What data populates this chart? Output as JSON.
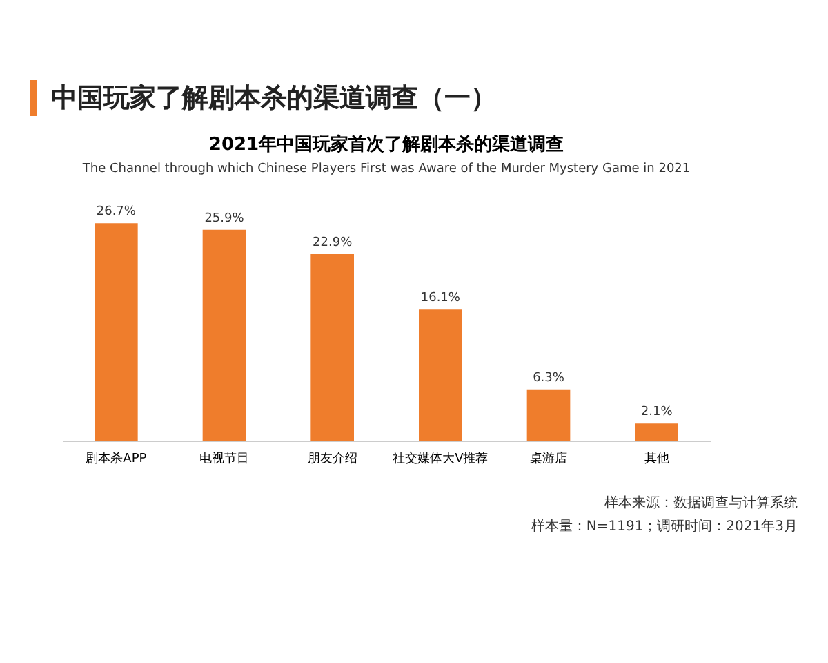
{
  "chart_data": {
    "type": "bar",
    "title": "中国玩家了解剧本杀的渠道调查（一）",
    "subtitle": "2021年中国玩家首次了解剧本杀的渠道调查",
    "annotations": [
      "The Channel through which Chinese Players First was Aware of the Murder Mystery Game in 2021",
      "样本来源：数据调查与计算系统",
      "样本量：N=1191；调研时间：2021年3月"
    ],
    "categories": [
      "剧本杀APP",
      "电视节目",
      "朋友介绍",
      "社交媒体大V推荐",
      "桌游店",
      "其他"
    ],
    "values": [
      26.7,
      25.9,
      22.9,
      16.1,
      6.3,
      2.1
    ],
    "value_labels": [
      "26.7%",
      "25.9%",
      "22.9%",
      "16.1%",
      "6.3%",
      "2.1%"
    ],
    "color": "#ef7d2c"
  }
}
